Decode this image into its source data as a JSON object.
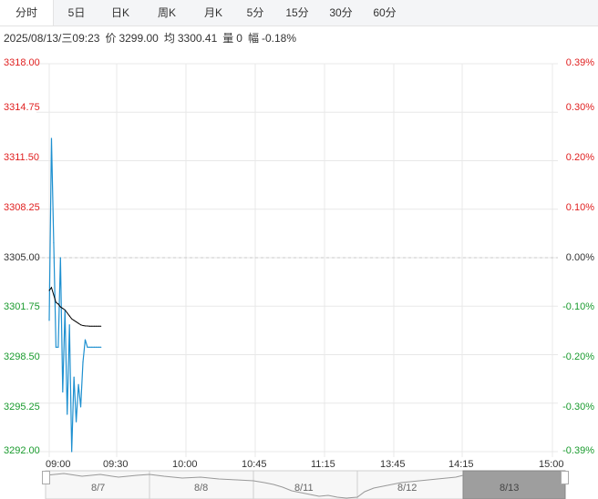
{
  "tabs": [
    {
      "label": "分时",
      "active": true
    },
    {
      "label": "5日"
    },
    {
      "label": "日K"
    },
    {
      "label": "周K"
    },
    {
      "label": "月K"
    },
    {
      "label": "5分"
    },
    {
      "label": "15分"
    },
    {
      "label": "30分"
    },
    {
      "label": "60分"
    }
  ],
  "info": {
    "datetime": "2025/08/13/三09:23",
    "price_label": "价",
    "price": "3299.00",
    "avg_label": "均",
    "avg": "3300.41",
    "vol_label": "量",
    "vol": "0",
    "chg_label": "幅",
    "chg": "-0.18%"
  },
  "y_left": [
    "3318.00",
    "3314.75",
    "3311.50",
    "3308.25",
    "3305.00",
    "3301.75",
    "3298.50",
    "3295.25",
    "3292.00"
  ],
  "y_right": [
    "0.39%",
    "0.30%",
    "0.20%",
    "0.10%",
    "0.00%",
    "-0.10%",
    "-0.20%",
    "-0.30%",
    "-0.39%"
  ],
  "x_labels": [
    "09:00",
    "09:30",
    "10:00",
    "10:45",
    "11:15",
    "13:45",
    "14:15",
    "15:00"
  ],
  "navigator": {
    "dates": [
      "8/7",
      "8/8",
      "8/11",
      "8/12",
      "8/13"
    ],
    "selected": "8/13"
  },
  "colors": {
    "up": "#e02020",
    "down": "#1a9b2e",
    "price_line": "#1e90d0",
    "avg_line": "#000000",
    "grid": "#e8e8e8"
  },
  "chart_data": {
    "type": "line",
    "title": "",
    "xlabel": "",
    "ylabel": "",
    "ylim": [
      3292.0,
      3318.0
    ],
    "base": 3305.0,
    "x_domain": [
      "09:00",
      "15:00"
    ],
    "x": [
      "09:00",
      "09:01",
      "09:02",
      "09:03",
      "09:04",
      "09:05",
      "09:06",
      "09:07",
      "09:08",
      "09:09",
      "09:10",
      "09:11",
      "09:12",
      "09:13",
      "09:14",
      "09:15",
      "09:16",
      "09:17",
      "09:18",
      "09:19",
      "09:20",
      "09:21",
      "09:22",
      "09:23"
    ],
    "series": [
      {
        "key": "price",
        "values": [
          3300.8,
          3313.0,
          3306.0,
          3299.0,
          3299.0,
          3305.0,
          3296.0,
          3301.5,
          3294.5,
          3300.5,
          3292.0,
          3297.0,
          3294.0,
          3296.5,
          3295.0,
          3298.0,
          3299.5,
          3299.0,
          3299.0,
          3299.0,
          3299.0,
          3299.0,
          3299.0,
          3299.0
        ]
      },
      {
        "key": "avg",
        "values": [
          3302.8,
          3303.0,
          3302.5,
          3302.0,
          3301.9,
          3301.7,
          3301.6,
          3301.5,
          3301.3,
          3301.1,
          3300.9,
          3300.8,
          3300.7,
          3300.6,
          3300.5,
          3300.45,
          3300.43,
          3300.42,
          3300.41,
          3300.41,
          3300.41,
          3300.41,
          3300.41,
          3300.41
        ]
      }
    ]
  }
}
